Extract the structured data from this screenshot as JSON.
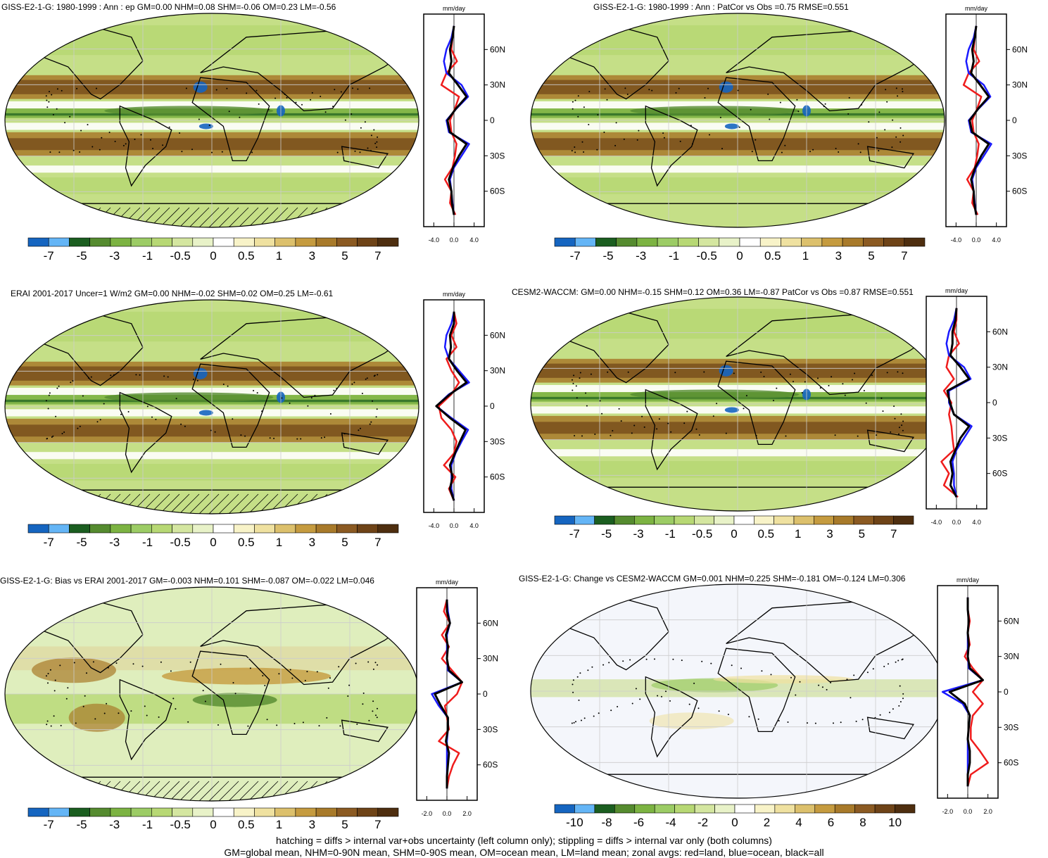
{
  "colors": {
    "neg": [
      "#1565c0",
      "#64b5f6",
      "#1b5e20",
      "#558b2f",
      "#7cb342",
      "#9ccc65",
      "#b7d874",
      "#d4e6a0",
      "#e8f2c8",
      "#ffffff",
      "#f8f3c8",
      "#efe1a0",
      "#dcc06c",
      "#c59b3f",
      "#a87a2a",
      "#8b5a22",
      "#6e4317",
      "#4e2e0f"
    ],
    "land": "#ef1c1c",
    "ocean": "#1a1aff",
    "all": "#000000"
  },
  "footer": {
    "line1": "hatching = diffs > internal var+obs uncertainty (left column only); stippling = diffs > internal var only (both columns)",
    "line2": "GM=global mean, NHM=0-90N mean, SHM=0-90S mean, OM=ocean mean, LM=land mean; zonal avgs: red=land, blue=ocean, black=all"
  },
  "panels": [
    {
      "id": "p1",
      "title": "GISS-E2-1-G: 1980-1999 : Ann : ep GM=0.00 NHM=0.08 SHM=-0.06 OM=0.23 LM=-0.56",
      "zonal_unit": "mm/day",
      "lat_ticks": [
        "60N",
        "30N",
        "0",
        "30S",
        "60S"
      ],
      "x_ticks": [
        "-4.0",
        "0.0",
        "4.0"
      ],
      "colorbar_labels": [
        "-7",
        "-5",
        "-3",
        "-1",
        "-0.5",
        "0",
        "0.5",
        "1",
        "3",
        "5",
        "7"
      ],
      "hatching": true
    },
    {
      "id": "p2",
      "title": "GISS-E2-1-G: 1980-1999 : Ann : PatCor vs Obs =0.75 RMSE=0.551",
      "zonal_unit": "mm/day",
      "lat_ticks": [
        "60N",
        "30N",
        "0",
        "30S",
        "60S"
      ],
      "x_ticks": [
        "-4.0",
        "0.0",
        "4.0"
      ],
      "colorbar_labels": [
        "-7",
        "-5",
        "-3",
        "-1",
        "-0.5",
        "0",
        "0.5",
        "1",
        "3",
        "5",
        "7"
      ],
      "hatching": false
    },
    {
      "id": "p3",
      "title": "ERAI 2001-2017 Uncer=1 W/m2 GM=0.00 NHM=-0.02 SHM=0.02 OM=0.25 LM=-0.61",
      "zonal_unit": "mm/day",
      "lat_ticks": [
        "60N",
        "30N",
        "0",
        "30S",
        "60S"
      ],
      "x_ticks": [
        "-4.0",
        "0.0",
        "4.0"
      ],
      "colorbar_labels": [
        "-7",
        "-5",
        "-3",
        "-1",
        "-0.5",
        "0",
        "0.5",
        "1",
        "3",
        "5",
        "7"
      ],
      "hatching": true
    },
    {
      "id": "p4",
      "title": "CESM2-WACCM: GM=0.00 NHM=-0.15 SHM=0.12 OM=0.36 LM=-0.87 PatCor vs Obs =0.87 RMSE=0.551",
      "zonal_unit": "mm/day",
      "lat_ticks": [
        "60N",
        "30N",
        "0",
        "30S",
        "60S"
      ],
      "x_ticks": [
        "-4.0",
        "0.0",
        "4.0"
      ],
      "colorbar_labels": [
        "-7",
        "-5",
        "-3",
        "-1",
        "-0.5",
        "0",
        "0.5",
        "1",
        "3",
        "5",
        "7"
      ],
      "hatching": false
    },
    {
      "id": "p5",
      "title": "GISS-E2-1-G: Bias vs ERAI 2001-2017 GM=-0.003 NHM=0.101 SHM=-0.087 OM=-0.022 LM=0.046",
      "zonal_unit": "mm/day",
      "lat_ticks": [
        "60N",
        "30N",
        "0",
        "30S",
        "60S"
      ],
      "x_ticks": [
        "-2.0",
        "0.0",
        "2.0"
      ],
      "colorbar_labels": [
        "-7",
        "-5",
        "-3",
        "-1",
        "-0.5",
        "0",
        "0.5",
        "1",
        "3",
        "5",
        "7"
      ],
      "hatching": true
    },
    {
      "id": "p6",
      "title": "GISS-E2-1-G: Change vs CESM2-WACCM GM=0.001 NHM=0.225 SHM=-0.181 OM=-0.124 LM=0.306",
      "zonal_unit": "mm/day",
      "lat_ticks": [
        "60N",
        "30N",
        "0",
        "30S",
        "60S"
      ],
      "x_ticks": [
        "-2.0",
        "0.0",
        "2.0"
      ],
      "colorbar_labels": [
        "-10",
        "-8",
        "-6",
        "-4",
        "-2",
        "0",
        "2",
        "4",
        "6",
        "8",
        "10"
      ],
      "hatching": false
    }
  ],
  "chart_data": [
    {
      "type": "line",
      "panel": "p1",
      "x_range": [
        -6,
        6
      ],
      "y_range": [
        -90,
        90
      ],
      "series": [
        {
          "name": "land",
          "lat": [
            -80,
            -70,
            -60,
            -50,
            -40,
            -30,
            -20,
            -10,
            0,
            10,
            20,
            30,
            40,
            50,
            60,
            70,
            80
          ],
          "values": [
            0.3,
            -0.8,
            -0.5,
            -1.8,
            -0.3,
            0.2,
            0.5,
            -0.5,
            -0.8,
            0.2,
            1.0,
            -2.5,
            -1.5,
            0.6,
            -0.5,
            -0.3,
            0.0
          ]
        },
        {
          "name": "ocean",
          "lat": [
            -80,
            -70,
            -60,
            -50,
            -40,
            -30,
            -20,
            -10,
            0,
            10,
            20,
            30,
            40,
            50,
            60,
            70,
            80
          ],
          "values": [
            0.0,
            -0.3,
            -0.5,
            -0.8,
            0.0,
            1.5,
            3.0,
            -1.0,
            -1.5,
            0.5,
            2.8,
            1.5,
            -1.5,
            -2.0,
            -1.5,
            -0.5,
            0.0
          ]
        },
        {
          "name": "all",
          "lat": [
            -80,
            -70,
            -60,
            -50,
            -40,
            -30,
            -20,
            -10,
            0,
            10,
            20,
            30,
            40,
            50,
            60,
            70,
            80
          ],
          "values": [
            0.0,
            -0.4,
            -0.5,
            -1.0,
            -0.2,
            1.0,
            2.5,
            -0.8,
            -1.3,
            0.4,
            2.5,
            0.8,
            -1.0,
            -0.5,
            -0.8,
            -0.3,
            0.0
          ]
        }
      ]
    },
    {
      "type": "line",
      "panel": "p2",
      "x_range": [
        -6,
        6
      ],
      "y_range": [
        -90,
        90
      ],
      "series": [
        {
          "name": "land",
          "lat": [
            -80,
            -70,
            -60,
            -50,
            -40,
            -30,
            -20,
            -10,
            0,
            10,
            20,
            30,
            40,
            50,
            60,
            70,
            80
          ],
          "values": [
            0.3,
            -0.8,
            -0.5,
            -1.8,
            -0.3,
            0.2,
            0.5,
            -0.5,
            -0.8,
            0.2,
            1.0,
            -2.5,
            -1.5,
            0.6,
            -0.5,
            -0.3,
            0.0
          ]
        },
        {
          "name": "ocean",
          "lat": [
            -80,
            -70,
            -60,
            -50,
            -40,
            -30,
            -20,
            -10,
            0,
            10,
            20,
            30,
            40,
            50,
            60,
            70,
            80
          ],
          "values": [
            0.0,
            -0.3,
            -0.5,
            -0.8,
            0.0,
            1.5,
            3.0,
            -1.0,
            -1.5,
            0.5,
            2.8,
            1.5,
            -1.5,
            -2.0,
            -1.5,
            -0.5,
            0.0
          ]
        },
        {
          "name": "all",
          "lat": [
            -80,
            -70,
            -60,
            -50,
            -40,
            -30,
            -20,
            -10,
            0,
            10,
            20,
            30,
            40,
            50,
            60,
            70,
            80
          ],
          "values": [
            0.0,
            -0.4,
            -0.5,
            -1.0,
            -0.2,
            1.0,
            2.5,
            -0.8,
            -1.3,
            0.4,
            2.5,
            0.8,
            -1.0,
            -0.5,
            -0.8,
            -0.3,
            0.0
          ]
        }
      ]
    },
    {
      "type": "line",
      "panel": "p3",
      "x_range": [
        -6,
        6
      ],
      "y_range": [
        -90,
        90
      ],
      "series": [
        {
          "name": "land",
          "lat": [
            -80,
            -70,
            -60,
            -50,
            -40,
            -30,
            -20,
            -10,
            0,
            10,
            20,
            30,
            40,
            50,
            60,
            70,
            80
          ],
          "values": [
            0.0,
            -1.0,
            0.3,
            -2.0,
            0.0,
            0.5,
            -0.5,
            -2.5,
            -3.0,
            -0.5,
            1.0,
            -0.5,
            -1.5,
            0.5,
            -0.5,
            0.5,
            0.0
          ]
        },
        {
          "name": "ocean",
          "lat": [
            -80,
            -70,
            -60,
            -50,
            -40,
            -30,
            -20,
            -10,
            0,
            10,
            20,
            30,
            40,
            50,
            60,
            70,
            80
          ],
          "values": [
            0.0,
            -0.5,
            -0.5,
            -0.5,
            0.3,
            1.5,
            2.8,
            -0.5,
            -3.5,
            -1.0,
            3.0,
            1.0,
            -1.0,
            -1.8,
            -1.5,
            -0.5,
            0.0
          ]
        },
        {
          "name": "all",
          "lat": [
            -80,
            -70,
            -60,
            -50,
            -40,
            -30,
            -20,
            -10,
            0,
            10,
            20,
            30,
            40,
            50,
            60,
            70,
            80
          ],
          "values": [
            0.0,
            -0.8,
            -0.3,
            -0.8,
            0.2,
            1.2,
            2.3,
            -0.8,
            -3.5,
            -0.8,
            2.5,
            0.6,
            -1.0,
            -0.6,
            -0.8,
            0.0,
            0.0
          ]
        }
      ]
    },
    {
      "type": "line",
      "panel": "p4",
      "x_range": [
        -6,
        6
      ],
      "y_range": [
        -90,
        90
      ],
      "series": [
        {
          "name": "land",
          "lat": [
            -80,
            -70,
            -60,
            -50,
            -40,
            -30,
            -20,
            -10,
            0,
            10,
            20,
            30,
            40,
            50,
            60,
            70,
            80
          ],
          "values": [
            0.3,
            -2.5,
            -1.5,
            -3.0,
            -0.5,
            -0.8,
            -1.0,
            -1.5,
            -1.0,
            -2.5,
            -0.5,
            -2.0,
            -1.5,
            0.5,
            -0.5,
            0.0,
            0.0
          ]
        },
        {
          "name": "ocean",
          "lat": [
            -80,
            -70,
            -60,
            -50,
            -40,
            -30,
            -20,
            -10,
            0,
            10,
            20,
            30,
            40,
            50,
            60,
            70,
            80
          ],
          "values": [
            0.0,
            -0.5,
            -0.5,
            -0.8,
            0.0,
            1.5,
            3.0,
            -0.5,
            -1.5,
            -1.5,
            2.8,
            1.5,
            -1.5,
            -2.0,
            -1.5,
            -0.5,
            0.0
          ]
        },
        {
          "name": "all",
          "lat": [
            -80,
            -70,
            -60,
            -50,
            -40,
            -30,
            -20,
            -10,
            0,
            10,
            20,
            30,
            40,
            50,
            60,
            70,
            80
          ],
          "values": [
            0.0,
            -1.2,
            -0.8,
            -1.2,
            -0.2,
            0.8,
            2.5,
            -0.5,
            -1.3,
            -1.8,
            2.5,
            0.8,
            -1.2,
            -0.8,
            -0.8,
            -0.2,
            0.0
          ]
        }
      ]
    },
    {
      "type": "line",
      "panel": "p5",
      "x_range": [
        -3,
        3
      ],
      "y_range": [
        -90,
        90
      ],
      "series": [
        {
          "name": "land",
          "lat": [
            -80,
            -70,
            -60,
            -50,
            -40,
            -30,
            -20,
            -10,
            0,
            10,
            20,
            30,
            40,
            50,
            60,
            70,
            80
          ],
          "values": [
            0.0,
            0.2,
            0.6,
            1.2,
            -0.8,
            0.2,
            0.0,
            -0.2,
            1.0,
            1.5,
            0.5,
            -0.5,
            0.2,
            -0.5,
            0.3,
            -0.3,
            0.0
          ]
        },
        {
          "name": "ocean",
          "lat": [
            -80,
            -70,
            -60,
            -50,
            -40,
            -30,
            -20,
            -10,
            0,
            10,
            20,
            30,
            40,
            50,
            60,
            70,
            80
          ],
          "values": [
            0.0,
            0.0,
            0.0,
            0.0,
            0.0,
            0.1,
            0.1,
            -0.8,
            -1.5,
            1.5,
            0.1,
            0.0,
            0.0,
            0.0,
            0.3,
            0.1,
            0.0
          ]
        },
        {
          "name": "all",
          "lat": [
            -80,
            -70,
            -60,
            -50,
            -40,
            -30,
            -20,
            -10,
            0,
            10,
            20,
            30,
            40,
            50,
            60,
            70,
            80
          ],
          "values": [
            0.0,
            0.0,
            0.1,
            0.2,
            -0.1,
            0.1,
            0.1,
            -0.6,
            -1.2,
            1.5,
            0.2,
            0.0,
            0.1,
            -0.1,
            0.3,
            0.0,
            0.0
          ]
        }
      ]
    },
    {
      "type": "line",
      "panel": "p6",
      "x_range": [
        -3,
        3
      ],
      "y_range": [
        -90,
        90
      ],
      "series": [
        {
          "name": "land",
          "lat": [
            -80,
            -70,
            -60,
            -50,
            -40,
            -30,
            -20,
            -10,
            0,
            10,
            20,
            30,
            40,
            50,
            60,
            70,
            80
          ],
          "values": [
            0.0,
            0.3,
            2.0,
            1.2,
            0.3,
            0.3,
            0.5,
            1.5,
            0.5,
            1.5,
            0.5,
            -0.3,
            0.2,
            0.0,
            0.2,
            0.0,
            0.0
          ]
        },
        {
          "name": "ocean",
          "lat": [
            -80,
            -70,
            -60,
            -50,
            -40,
            -30,
            -20,
            -10,
            0,
            10,
            20,
            30,
            40,
            50,
            60,
            70,
            80
          ],
          "values": [
            0.0,
            0.0,
            0.0,
            0.0,
            0.0,
            0.1,
            0.2,
            -0.5,
            -2.5,
            1.5,
            0.1,
            0.0,
            0.0,
            0.0,
            0.1,
            0.0,
            0.0
          ]
        },
        {
          "name": "all",
          "lat": [
            -80,
            -70,
            -60,
            -50,
            -40,
            -30,
            -20,
            -10,
            0,
            10,
            20,
            30,
            40,
            50,
            60,
            70,
            80
          ],
          "values": [
            0.0,
            0.0,
            0.2,
            0.2,
            0.0,
            0.1,
            0.2,
            -0.3,
            -1.8,
            1.5,
            0.2,
            0.0,
            0.1,
            0.0,
            0.1,
            0.0,
            0.0
          ]
        }
      ]
    }
  ]
}
